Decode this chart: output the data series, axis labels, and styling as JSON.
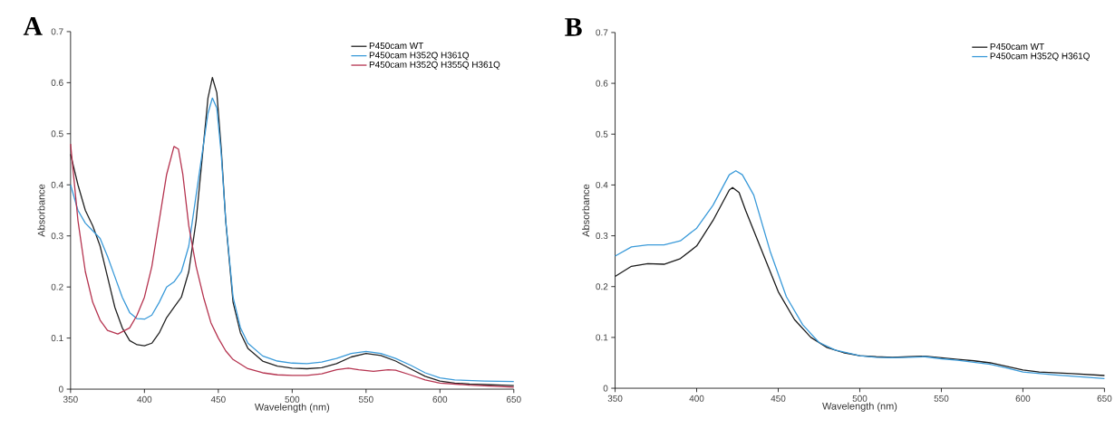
{
  "chart_data": [
    {
      "type": "line",
      "title": "A",
      "xlabel": "Wavelength (nm)",
      "ylabel": "Absorbance",
      "xlim": [
        350,
        650
      ],
      "ylim": [
        0,
        0.7
      ],
      "xticks": [
        350,
        400,
        450,
        500,
        550,
        600,
        650
      ],
      "yticks": [
        0,
        0.1,
        0.2,
        0.3,
        0.4,
        0.5,
        0.6,
        0.7
      ],
      "legend": "top right",
      "series": [
        {
          "name": "P450cam WT",
          "color": "#222222",
          "x": [
            350,
            355,
            360,
            365,
            370,
            375,
            380,
            385,
            390,
            395,
            400,
            405,
            410,
            415,
            420,
            425,
            430,
            435,
            440,
            443,
            446,
            449,
            452,
            455,
            460,
            465,
            470,
            480,
            490,
            500,
            510,
            520,
            530,
            540,
            550,
            560,
            570,
            580,
            590,
            600,
            610,
            620,
            630,
            650
          ],
          "values": [
            0.46,
            0.4,
            0.35,
            0.32,
            0.28,
            0.22,
            0.16,
            0.12,
            0.095,
            0.087,
            0.085,
            0.09,
            0.11,
            0.14,
            0.16,
            0.18,
            0.23,
            0.33,
            0.48,
            0.57,
            0.61,
            0.58,
            0.47,
            0.33,
            0.17,
            0.11,
            0.08,
            0.055,
            0.045,
            0.041,
            0.04,
            0.042,
            0.05,
            0.063,
            0.07,
            0.066,
            0.055,
            0.04,
            0.025,
            0.016,
            0.012,
            0.01,
            0.009,
            0.007
          ]
        },
        {
          "name": "P450cam H352Q H361Q",
          "color": "#3a9ad9",
          "x": [
            350,
            355,
            360,
            365,
            370,
            375,
            380,
            385,
            390,
            395,
            400,
            405,
            410,
            415,
            420,
            425,
            430,
            435,
            440,
            443,
            446,
            449,
            452,
            455,
            460,
            465,
            470,
            480,
            490,
            500,
            510,
            520,
            530,
            540,
            550,
            560,
            570,
            580,
            590,
            600,
            610,
            630,
            650
          ],
          "values": [
            0.4,
            0.35,
            0.325,
            0.31,
            0.295,
            0.26,
            0.22,
            0.18,
            0.15,
            0.138,
            0.137,
            0.145,
            0.17,
            0.2,
            0.21,
            0.23,
            0.28,
            0.38,
            0.48,
            0.54,
            0.57,
            0.55,
            0.46,
            0.33,
            0.18,
            0.12,
            0.09,
            0.065,
            0.055,
            0.051,
            0.05,
            0.053,
            0.06,
            0.07,
            0.074,
            0.07,
            0.06,
            0.047,
            0.032,
            0.022,
            0.018,
            0.016,
            0.015
          ]
        },
        {
          "name": "P450cam H352Q H355Q H361Q",
          "color": "#b5334f",
          "x": [
            350,
            355,
            360,
            365,
            370,
            375,
            382,
            390,
            395,
            400,
            405,
            410,
            415,
            420,
            423,
            426,
            430,
            435,
            440,
            445,
            450,
            455,
            460,
            470,
            480,
            490,
            500,
            510,
            520,
            530,
            538,
            545,
            555,
            565,
            570,
            580,
            590,
            600,
            620,
            650
          ],
          "values": [
            0.48,
            0.33,
            0.23,
            0.17,
            0.135,
            0.115,
            0.108,
            0.12,
            0.145,
            0.18,
            0.24,
            0.33,
            0.42,
            0.475,
            0.47,
            0.42,
            0.32,
            0.24,
            0.18,
            0.13,
            0.1,
            0.075,
            0.058,
            0.04,
            0.032,
            0.028,
            0.027,
            0.027,
            0.03,
            0.038,
            0.041,
            0.038,
            0.035,
            0.038,
            0.037,
            0.028,
            0.018,
            0.012,
            0.008,
            0.004
          ]
        }
      ]
    },
    {
      "type": "line",
      "title": "B",
      "xlabel": "Wavelength (nm)",
      "ylabel": "Absorbance",
      "xlim": [
        350,
        650
      ],
      "ylim": [
        0,
        0.7
      ],
      "xticks": [
        350,
        400,
        450,
        500,
        550,
        600,
        650
      ],
      "yticks": [
        0,
        0.1,
        0.2,
        0.3,
        0.4,
        0.5,
        0.6,
        0.7
      ],
      "legend": "top right",
      "series": [
        {
          "name": "P450cam WT",
          "color": "#1a1a1a",
          "x": [
            350,
            360,
            370,
            380,
            390,
            400,
            410,
            420,
            422,
            426,
            430,
            440,
            450,
            460,
            470,
            480,
            490,
            500,
            510,
            520,
            530,
            540,
            550,
            560,
            570,
            580,
            590,
            600,
            610,
            630,
            650
          ],
          "values": [
            0.22,
            0.24,
            0.245,
            0.244,
            0.255,
            0.28,
            0.33,
            0.39,
            0.395,
            0.385,
            0.35,
            0.27,
            0.19,
            0.135,
            0.1,
            0.08,
            0.07,
            0.064,
            0.062,
            0.061,
            0.062,
            0.063,
            0.06,
            0.057,
            0.054,
            0.05,
            0.043,
            0.036,
            0.032,
            0.029,
            0.025
          ]
        },
        {
          "name": "P450cam H352Q H361Q",
          "color": "#3a9ad9",
          "x": [
            350,
            360,
            370,
            380,
            390,
            400,
            410,
            420,
            424,
            428,
            435,
            445,
            455,
            465,
            475,
            485,
            500,
            510,
            520,
            530,
            540,
            550,
            560,
            570,
            580,
            590,
            600,
            620,
            650
          ],
          "values": [
            0.26,
            0.278,
            0.282,
            0.282,
            0.29,
            0.315,
            0.36,
            0.42,
            0.428,
            0.42,
            0.38,
            0.27,
            0.18,
            0.125,
            0.09,
            0.075,
            0.064,
            0.061,
            0.06,
            0.061,
            0.062,
            0.058,
            0.055,
            0.051,
            0.047,
            0.04,
            0.032,
            0.026,
            0.019
          ]
        }
      ]
    }
  ]
}
